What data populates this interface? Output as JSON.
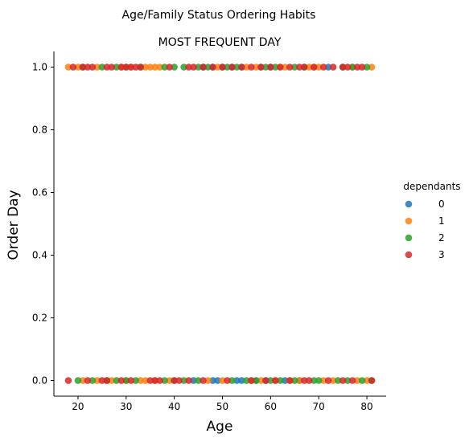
{
  "chart_data": {
    "type": "scatter",
    "suptitle": "Age/Family Status Ordering Habits",
    "title": "MOST FREQUENT DAY",
    "xlabel": "Age",
    "ylabel": "Order Day",
    "xlim": [
      15,
      84
    ],
    "ylim": [
      -0.05,
      1.05
    ],
    "x_ticks": [
      20,
      30,
      40,
      50,
      60,
      70,
      80
    ],
    "y_ticks": [
      0.0,
      0.2,
      0.4,
      0.6,
      0.8,
      1.0
    ],
    "x_tick_labels": [
      "20",
      "30",
      "40",
      "50",
      "60",
      "70",
      "80"
    ],
    "y_tick_labels": [
      "0.0",
      "0.2",
      "0.4",
      "0.6",
      "0.8",
      "1.0"
    ],
    "grid": false,
    "legend": {
      "title": "dependants",
      "placement": "right"
    },
    "colors": {
      "0": "#1f77b4",
      "1": "#ff7f0e",
      "2": "#2ca02c",
      "3": "#d62728"
    },
    "series": [
      {
        "name": "0",
        "points": [
          [
            46,
            1
          ],
          [
            48,
            1
          ],
          [
            50,
            1
          ],
          [
            52,
            1
          ],
          [
            54,
            1
          ],
          [
            58,
            1
          ],
          [
            60,
            1
          ],
          [
            72,
            1
          ],
          [
            44,
            0
          ],
          [
            48,
            0
          ],
          [
            49,
            0
          ],
          [
            53,
            0
          ],
          [
            54,
            0
          ],
          [
            57,
            0
          ],
          [
            59,
            0
          ],
          [
            63,
            0
          ],
          [
            66,
            0
          ]
        ]
      },
      {
        "name": "1",
        "points": [
          [
            18,
            1
          ],
          [
            20,
            1
          ],
          [
            24,
            1
          ],
          [
            29,
            1
          ],
          [
            31,
            1
          ],
          [
            34,
            1
          ],
          [
            35,
            1
          ],
          [
            36,
            1
          ],
          [
            37,
            1
          ],
          [
            49,
            1
          ],
          [
            55,
            1
          ],
          [
            57,
            1
          ],
          [
            62,
            1
          ],
          [
            63,
            1
          ],
          [
            68,
            1
          ],
          [
            69,
            1
          ],
          [
            70,
            1
          ],
          [
            77,
            1
          ],
          [
            81,
            1
          ],
          [
            21,
            0
          ],
          [
            24,
            0
          ],
          [
            27,
            0
          ],
          [
            30,
            0
          ],
          [
            33,
            0
          ],
          [
            34,
            0
          ],
          [
            36,
            0
          ],
          [
            39,
            0
          ],
          [
            47,
            0
          ],
          [
            50,
            0
          ],
          [
            56,
            0
          ],
          [
            58,
            0
          ],
          [
            61,
            0
          ],
          [
            64,
            0
          ],
          [
            66,
            0
          ],
          [
            71,
            0
          ],
          [
            73,
            0
          ],
          [
            78,
            0
          ],
          [
            80,
            0
          ]
        ]
      },
      {
        "name": "2",
        "points": [
          [
            21,
            1
          ],
          [
            25,
            1
          ],
          [
            28,
            1
          ],
          [
            30,
            1
          ],
          [
            33,
            1
          ],
          [
            38,
            1
          ],
          [
            40,
            1
          ],
          [
            42,
            1
          ],
          [
            45,
            1
          ],
          [
            47,
            1
          ],
          [
            51,
            1
          ],
          [
            53,
            1
          ],
          [
            59,
            1
          ],
          [
            61,
            1
          ],
          [
            65,
            1
          ],
          [
            67,
            1
          ],
          [
            75,
            1
          ],
          [
            77,
            1
          ],
          [
            80,
            1
          ],
          [
            20,
            0
          ],
          [
            23,
            0
          ],
          [
            26,
            0
          ],
          [
            28,
            0
          ],
          [
            30,
            0
          ],
          [
            32,
            0
          ],
          [
            38,
            0
          ],
          [
            40,
            0
          ],
          [
            42,
            0
          ],
          [
            45,
            0
          ],
          [
            52,
            0
          ],
          [
            55,
            0
          ],
          [
            57,
            0
          ],
          [
            60,
            0
          ],
          [
            62,
            0
          ],
          [
            65,
            0
          ],
          [
            69,
            0
          ],
          [
            70,
            0
          ],
          [
            74,
            0
          ],
          [
            76,
            0
          ],
          [
            79,
            0
          ],
          [
            81,
            0
          ]
        ]
      },
      {
        "name": "3",
        "points": [
          [
            19,
            1
          ],
          [
            21,
            1
          ],
          [
            22,
            1
          ],
          [
            23,
            1
          ],
          [
            26,
            1
          ],
          [
            27,
            1
          ],
          [
            29,
            1
          ],
          [
            30,
            1
          ],
          [
            31,
            1
          ],
          [
            32,
            1
          ],
          [
            33,
            1
          ],
          [
            39,
            1
          ],
          [
            43,
            1
          ],
          [
            44,
            1
          ],
          [
            46,
            1
          ],
          [
            48,
            1
          ],
          [
            50,
            1
          ],
          [
            52,
            1
          ],
          [
            54,
            1
          ],
          [
            56,
            1
          ],
          [
            58,
            1
          ],
          [
            60,
            1
          ],
          [
            62,
            1
          ],
          [
            64,
            1
          ],
          [
            66,
            1
          ],
          [
            67,
            1
          ],
          [
            69,
            1
          ],
          [
            71,
            1
          ],
          [
            73,
            1
          ],
          [
            75,
            1
          ],
          [
            76,
            1
          ],
          [
            78,
            1
          ],
          [
            79,
            1
          ],
          [
            18,
            0
          ],
          [
            22,
            0
          ],
          [
            25,
            0
          ],
          [
            26,
            0
          ],
          [
            29,
            0
          ],
          [
            31,
            0
          ],
          [
            35,
            0
          ],
          [
            36,
            0
          ],
          [
            37,
            0
          ],
          [
            40,
            0
          ],
          [
            41,
            0
          ],
          [
            43,
            0
          ],
          [
            46,
            0
          ],
          [
            51,
            0
          ],
          [
            56,
            0
          ],
          [
            59,
            0
          ],
          [
            61,
            0
          ],
          [
            64,
            0
          ],
          [
            67,
            0
          ],
          [
            68,
            0
          ],
          [
            72,
            0
          ],
          [
            75,
            0
          ],
          [
            77,
            0
          ],
          [
            81,
            0
          ]
        ]
      }
    ]
  }
}
